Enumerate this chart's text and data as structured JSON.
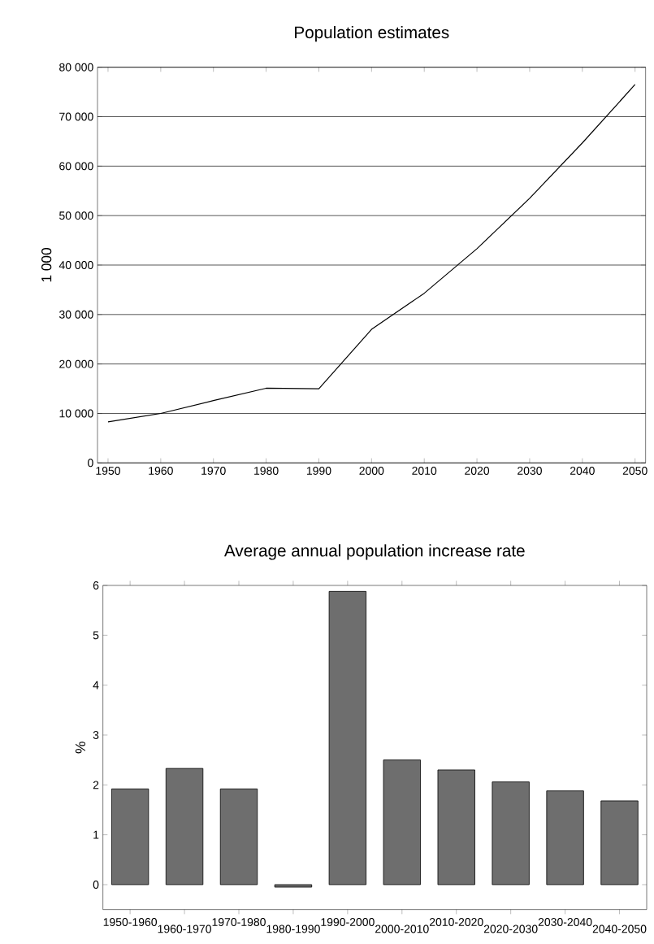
{
  "chart_data": [
    {
      "type": "line",
      "title": "Population estimates",
      "ylabel": "1 000",
      "x": [
        1950,
        1960,
        1970,
        1980,
        1990,
        2000,
        2010,
        2020,
        2030,
        2040,
        2050
      ],
      "values": [
        8300,
        10000,
        12600,
        15100,
        15000,
        27000,
        34300,
        43300,
        53500,
        64700,
        76500
      ],
      "color": "#000000",
      "xlim": [
        1948,
        2052
      ],
      "ylim": [
        0,
        80000
      ],
      "xticks": [
        1950,
        1960,
        1970,
        1980,
        1990,
        2000,
        2010,
        2020,
        2030,
        2040,
        2050
      ],
      "yticks": [
        0,
        {
          "value": 10000,
          "label": "10 000"
        },
        {
          "value": 20000,
          "label": "20 000"
        },
        {
          "value": 30000,
          "label": "30 000"
        },
        {
          "value": 40000,
          "label": "40 000"
        },
        {
          "value": 50000,
          "label": "50 000"
        },
        {
          "value": 60000,
          "label": "60 000"
        },
        {
          "value": 70000,
          "label": "70 000"
        },
        {
          "value": 80000,
          "label": "80 000"
        }
      ],
      "grid": "y"
    },
    {
      "type": "bar",
      "title": "Average annual population increase rate",
      "ylabel": "%",
      "categories": [
        "1950-1960",
        "1960-1970",
        "1970-1980",
        "1980-1990",
        "1990-2000",
        "2000-2010",
        "2010-2020",
        "2020-2030",
        "2030-2040",
        "2040-2050"
      ],
      "values": [
        1.92,
        2.33,
        1.92,
        -0.05,
        5.88,
        2.5,
        2.3,
        2.06,
        1.88,
        1.68
      ],
      "color": "#6e6e6e",
      "ylim": [
        -0.5,
        6
      ],
      "yticks": [
        0,
        1,
        2,
        3,
        4,
        5,
        6
      ]
    }
  ]
}
